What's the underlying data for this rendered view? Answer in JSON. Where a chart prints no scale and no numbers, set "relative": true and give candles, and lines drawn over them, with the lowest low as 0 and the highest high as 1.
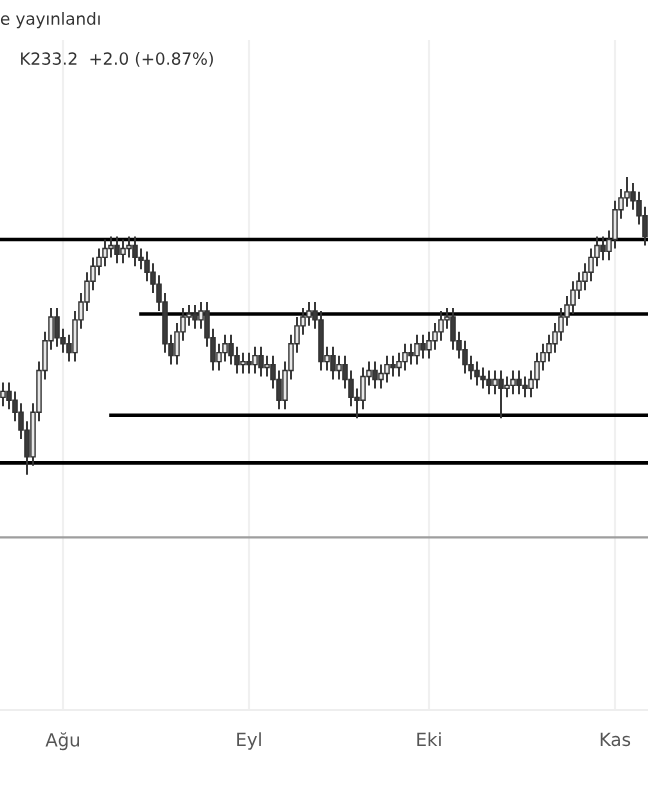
{
  "chart_data": {
    "type": "candlestick",
    "relative": true,
    "grid": "x",
    "annotations": [
      "e yayınlandı",
      "K233.2  +2.0 (+0.87%)"
    ],
    "categories": [
      null,
      null,
      null,
      null,
      null,
      null,
      null,
      null,
      null,
      null,
      "Ağu",
      null,
      null,
      null,
      null,
      null,
      null,
      null,
      null,
      null,
      null,
      null,
      null,
      null,
      null,
      null,
      null,
      null,
      null,
      null,
      null,
      null,
      null,
      null,
      null,
      null,
      null,
      null,
      null,
      null,
      null,
      "Eyl",
      null,
      null,
      null,
      null,
      null,
      null,
      null,
      null,
      null,
      null,
      null,
      null,
      null,
      null,
      null,
      null,
      null,
      null,
      null,
      null,
      null,
      null,
      null,
      null,
      null,
      null,
      null,
      null,
      null,
      "Eki",
      null,
      null,
      null,
      null,
      null,
      null,
      null,
      null,
      null,
      null,
      null,
      null,
      null,
      null,
      null,
      null,
      null,
      null,
      null,
      null,
      null,
      null,
      null,
      null,
      null,
      null,
      null,
      null,
      null,
      null,
      "Kas",
      null,
      null,
      null,
      null,
      null
    ],
    "ohlc": [
      [
        0.26,
        0.31,
        0.23,
        0.28
      ],
      [
        0.28,
        0.31,
        0.22,
        0.25
      ],
      [
        0.25,
        0.28,
        0.18,
        0.21
      ],
      [
        0.21,
        0.24,
        0.12,
        0.15
      ],
      [
        0.15,
        0.18,
        0,
        0.06
      ],
      [
        0.06,
        0.24,
        0.03,
        0.21
      ],
      [
        0.21,
        0.38,
        0.18,
        0.35
      ],
      [
        0.35,
        0.48,
        0.32,
        0.45
      ],
      [
        0.45,
        0.56,
        0.42,
        0.53
      ],
      [
        0.53,
        0.56,
        0.43,
        0.46
      ],
      [
        0.46,
        0.49,
        0.41,
        0.44
      ],
      [
        0.44,
        0.47,
        0.38,
        0.41
      ],
      [
        0.41,
        0.55,
        0.38,
        0.52
      ],
      [
        0.52,
        0.61,
        0.49,
        0.58
      ],
      [
        0.58,
        0.68,
        0.55,
        0.65
      ],
      [
        0.65,
        0.73,
        0.62,
        0.7
      ],
      [
        0.7,
        0.76,
        0.67,
        0.73
      ],
      [
        0.73,
        0.79,
        0.7,
        0.76
      ],
      [
        0.76,
        0.8,
        0.73,
        0.77
      ],
      [
        0.77,
        0.8,
        0.71,
        0.74
      ],
      [
        0.74,
        0.79,
        0.71,
        0.76
      ],
      [
        0.76,
        0.8,
        0.73,
        0.77
      ],
      [
        0.77,
        0.8,
        0.7,
        0.73
      ],
      [
        0.73,
        0.76,
        0.69,
        0.72
      ],
      [
        0.72,
        0.75,
        0.65,
        0.68
      ],
      [
        0.68,
        0.71,
        0.61,
        0.64
      ],
      [
        0.64,
        0.67,
        0.55,
        0.58
      ],
      [
        0.58,
        0.61,
        0.41,
        0.44
      ],
      [
        0.44,
        0.47,
        0.37,
        0.4
      ],
      [
        0.4,
        0.51,
        0.37,
        0.48
      ],
      [
        0.48,
        0.56,
        0.45,
        0.53
      ],
      [
        0.53,
        0.57,
        0.5,
        0.54
      ],
      [
        0.54,
        0.57,
        0.49,
        0.52
      ],
      [
        0.52,
        0.58,
        0.49,
        0.55
      ],
      [
        0.55,
        0.58,
        0.43,
        0.46
      ],
      [
        0.46,
        0.49,
        0.35,
        0.38
      ],
      [
        0.38,
        0.44,
        0.35,
        0.41
      ],
      [
        0.41,
        0.47,
        0.38,
        0.44
      ],
      [
        0.44,
        0.47,
        0.37,
        0.4
      ],
      [
        0.4,
        0.43,
        0.34,
        0.37
      ],
      [
        0.37,
        0.41,
        0.34,
        0.38
      ],
      [
        0.38,
        0.41,
        0.34,
        0.37
      ],
      [
        0.37,
        0.43,
        0.34,
        0.4
      ],
      [
        0.4,
        0.43,
        0.33,
        0.36
      ],
      [
        0.36,
        0.4,
        0.33,
        0.37
      ],
      [
        0.37,
        0.4,
        0.29,
        0.32
      ],
      [
        0.32,
        0.35,
        0.22,
        0.25
      ],
      [
        0.25,
        0.38,
        0.22,
        0.35
      ],
      [
        0.35,
        0.47,
        0.32,
        0.44
      ],
      [
        0.44,
        0.53,
        0.41,
        0.5
      ],
      [
        0.5,
        0.56,
        0.47,
        0.53
      ],
      [
        0.53,
        0.58,
        0.5,
        0.55
      ],
      [
        0.55,
        0.58,
        0.49,
        0.52
      ],
      [
        0.52,
        0.55,
        0.35,
        0.38
      ],
      [
        0.38,
        0.43,
        0.35,
        0.4
      ],
      [
        0.4,
        0.43,
        0.32,
        0.35
      ],
      [
        0.35,
        0.4,
        0.32,
        0.37
      ],
      [
        0.37,
        0.4,
        0.29,
        0.32
      ],
      [
        0.32,
        0.35,
        0.23,
        0.26
      ],
      [
        0.26,
        0.29,
        0.19,
        0.25
      ],
      [
        0.25,
        0.36,
        0.22,
        0.33
      ],
      [
        0.33,
        0.38,
        0.3,
        0.35
      ],
      [
        0.35,
        0.38,
        0.29,
        0.32
      ],
      [
        0.32,
        0.37,
        0.29,
        0.34
      ],
      [
        0.34,
        0.4,
        0.31,
        0.37
      ],
      [
        0.37,
        0.4,
        0.33,
        0.36
      ],
      [
        0.36,
        0.41,
        0.33,
        0.38
      ],
      [
        0.38,
        0.44,
        0.35,
        0.41
      ],
      [
        0.41,
        0.44,
        0.37,
        0.4
      ],
      [
        0.4,
        0.47,
        0.37,
        0.44
      ],
      [
        0.44,
        0.47,
        0.39,
        0.42
      ],
      [
        0.42,
        0.48,
        0.39,
        0.45
      ],
      [
        0.45,
        0.51,
        0.42,
        0.48
      ],
      [
        0.48,
        0.55,
        0.45,
        0.52
      ],
      [
        0.52,
        0.56,
        0.49,
        0.53
      ],
      [
        0.53,
        0.56,
        0.42,
        0.45
      ],
      [
        0.45,
        0.48,
        0.39,
        0.42
      ],
      [
        0.42,
        0.45,
        0.34,
        0.37
      ],
      [
        0.37,
        0.4,
        0.32,
        0.35
      ],
      [
        0.35,
        0.38,
        0.3,
        0.33
      ],
      [
        0.33,
        0.36,
        0.29,
        0.32
      ],
      [
        0.32,
        0.35,
        0.27,
        0.3
      ],
      [
        0.3,
        0.35,
        0.27,
        0.32
      ],
      [
        0.32,
        0.35,
        0.19,
        0.29
      ],
      [
        0.29,
        0.33,
        0.26,
        0.3
      ],
      [
        0.3,
        0.35,
        0.27,
        0.32
      ],
      [
        0.32,
        0.35,
        0.27,
        0.3
      ],
      [
        0.3,
        0.33,
        0.26,
        0.29
      ],
      [
        0.29,
        0.35,
        0.26,
        0.32
      ],
      [
        0.32,
        0.41,
        0.29,
        0.38
      ],
      [
        0.38,
        0.44,
        0.35,
        0.41
      ],
      [
        0.41,
        0.47,
        0.38,
        0.44
      ],
      [
        0.44,
        0.51,
        0.41,
        0.48
      ],
      [
        0.48,
        0.56,
        0.45,
        0.53
      ],
      [
        0.53,
        0.6,
        0.5,
        0.57
      ],
      [
        0.57,
        0.65,
        0.54,
        0.62
      ],
      [
        0.62,
        0.68,
        0.59,
        0.65
      ],
      [
        0.65,
        0.71,
        0.62,
        0.68
      ],
      [
        0.68,
        0.76,
        0.65,
        0.73
      ],
      [
        0.73,
        0.8,
        0.7,
        0.77
      ],
      [
        0.77,
        0.8,
        0.72,
        0.75
      ],
      [
        0.75,
        0.82,
        0.72,
        0.79
      ],
      [
        0.79,
        0.92,
        0.76,
        0.89
      ],
      [
        0.89,
        0.96,
        0.86,
        0.93
      ],
      [
        0.93,
        1.0,
        0.9,
        0.95
      ],
      [
        0.95,
        0.98,
        0.89,
        0.92
      ],
      [
        0.92,
        0.95,
        0.84,
        0.87
      ],
      [
        0.87,
        0.9,
        0.77,
        0.8
      ]
    ],
    "series": [
      {
        "type": "line",
        "color": "#000000",
        "values": [
          0.79,
          0.79,
          0.79,
          0.79,
          0.79,
          0.79,
          0.79,
          0.79,
          0.79,
          0.79,
          0.79,
          0.79,
          0.79,
          0.79,
          0.79,
          0.79,
          0.79,
          0.79,
          0.79,
          0.79,
          0.79,
          0.79,
          0.79,
          0.79,
          0.79,
          0.79,
          0.79,
          0.79,
          0.79,
          0.79,
          0.79,
          0.79,
          0.79,
          0.79,
          0.79,
          0.79,
          0.79,
          0.79,
          0.79,
          0.79,
          0.79,
          0.79,
          0.79,
          0.79,
          0.79,
          0.79,
          0.79,
          0.79,
          0.79,
          0.79,
          0.79,
          0.79,
          0.79,
          0.79,
          0.79,
          0.79,
          0.79,
          0.79,
          0.79,
          0.79,
          0.79,
          0.79,
          0.79,
          0.79,
          0.79,
          0.79,
          0.79,
          0.79,
          0.79,
          0.79,
          0.79,
          0.79,
          0.79,
          0.79,
          0.79,
          0.79,
          0.79,
          0.79,
          0.79,
          0.79,
          0.79,
          0.79,
          0.79,
          0.79,
          0.79,
          0.79,
          0.79,
          0.79,
          0.79,
          0.79,
          0.79,
          0.79,
          0.79,
          0.79,
          0.79,
          0.79,
          0.79,
          0.79,
          0.79,
          0.79,
          0.79,
          0.79,
          0.79,
          0.79,
          0.79,
          0.79,
          0.79,
          0.79
        ]
      },
      {
        "type": "line",
        "color": "#000000",
        "values": [
          null,
          null,
          null,
          null,
          null,
          null,
          null,
          null,
          null,
          null,
          null,
          null,
          null,
          null,
          null,
          null,
          null,
          null,
          null,
          null,
          null,
          null,
          null,
          0.54,
          0.54,
          0.54,
          0.54,
          0.54,
          0.54,
          0.54,
          0.54,
          0.54,
          0.54,
          0.54,
          0.54,
          0.54,
          0.54,
          0.54,
          0.54,
          0.54,
          0.54,
          0.54,
          0.54,
          0.54,
          0.54,
          0.54,
          0.54,
          0.54,
          0.54,
          0.54,
          0.54,
          0.54,
          0.54,
          0.54,
          0.54,
          0.54,
          0.54,
          0.54,
          0.54,
          0.54,
          0.54,
          0.54,
          0.54,
          0.54,
          0.54,
          0.54,
          0.54,
          0.54,
          0.54,
          0.54,
          0.54,
          0.54,
          0.54,
          0.54,
          0.54,
          0.54,
          0.54,
          0.54,
          0.54,
          0.54,
          0.54,
          0.54,
          0.54,
          0.54,
          0.54,
          0.54,
          0.54,
          0.54,
          0.54,
          0.54,
          0.54,
          0.54,
          0.54,
          0.54,
          0.54,
          0.54,
          0.54,
          0.54,
          0.54,
          0.54,
          0.54,
          0.54,
          0.54,
          0.54,
          0.54,
          0.54,
          0.54,
          0.54
        ]
      },
      {
        "type": "line",
        "color": "#000000",
        "values": [
          null,
          null,
          null,
          null,
          null,
          null,
          null,
          null,
          null,
          null,
          null,
          null,
          null,
          null,
          null,
          null,
          null,
          null,
          0.2,
          0.2,
          0.2,
          0.2,
          0.2,
          0.2,
          0.2,
          0.2,
          0.2,
          0.2,
          0.2,
          0.2,
          0.2,
          0.2,
          0.2,
          0.2,
          0.2,
          0.2,
          0.2,
          0.2,
          0.2,
          0.2,
          0.2,
          0.2,
          0.2,
          0.2,
          0.2,
          0.2,
          0.2,
          0.2,
          0.2,
          0.2,
          0.2,
          0.2,
          0.2,
          0.2,
          0.2,
          0.2,
          0.2,
          0.2,
          0.2,
          0.2,
          0.2,
          0.2,
          0.2,
          0.2,
          0.2,
          0.2,
          0.2,
          0.2,
          0.2,
          0.2,
          0.2,
          0.2,
          0.2,
          0.2,
          0.2,
          0.2,
          0.2,
          0.2,
          0.2,
          0.2,
          0.2,
          0.2,
          0.2,
          0.2,
          0.2,
          0.2,
          0.2,
          0.2,
          0.2,
          0.2,
          0.2,
          0.2,
          0.2,
          0.2,
          0.2,
          0.2,
          0.2,
          0.2,
          0.2,
          0.2,
          0.2,
          0.2,
          0.2,
          0.2,
          0.2,
          0.2,
          0.2,
          0.2
        ]
      },
      {
        "type": "line",
        "color": "#000000",
        "values": [
          0.04,
          0.04,
          0.04,
          0.04,
          0.04,
          0.04,
          0.04,
          0.04,
          0.04,
          0.04,
          0.04,
          0.04,
          0.04,
          0.04,
          0.04,
          0.04,
          0.04,
          0.04,
          0.04,
          0.04,
          0.04,
          0.04,
          0.04,
          0.04,
          0.04,
          0.04,
          0.04,
          0.04,
          0.04,
          0.04,
          0.04,
          0.04,
          0.04,
          0.04,
          0.04,
          0.04,
          0.04,
          0.04,
          0.04,
          0.04,
          0.04,
          0.04,
          0.04,
          0.04,
          0.04,
          0.04,
          0.04,
          0.04,
          0.04,
          0.04,
          0.04,
          0.04,
          0.04,
          0.04,
          0.04,
          0.04,
          0.04,
          0.04,
          0.04,
          0.04,
          0.04,
          0.04,
          0.04,
          0.04,
          0.04,
          0.04,
          0.04,
          0.04,
          0.04,
          0.04,
          0.04,
          0.04,
          0.04,
          0.04,
          0.04,
          0.04,
          0.04,
          0.04,
          0.04,
          0.04,
          0.04,
          0.04,
          0.04,
          0.04,
          0.04,
          0.04,
          0.04,
          0.04,
          0.04,
          0.04,
          0.04,
          0.04,
          0.04,
          0.04,
          0.04,
          0.04,
          0.04,
          0.04,
          0.04,
          0.04,
          0.04,
          0.04,
          0.04,
          0.04,
          0.04,
          0.04,
          0.04,
          0.04
        ]
      }
    ],
    "ref_lines": [
      {
        "axis": "y",
        "value": -0.21,
        "color": "#9e9e9e"
      }
    ]
  }
}
